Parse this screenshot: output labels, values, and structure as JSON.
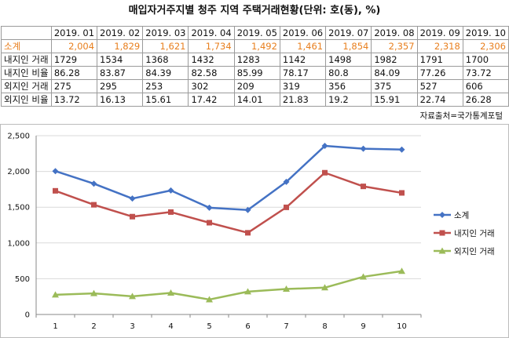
{
  "title": "매입자거주지별 청주 지역 주택거래현황(단위: 호(동), %)",
  "source": "자료출처=국가통계포털",
  "table": {
    "columns": [
      "2019. 01",
      "2019. 02",
      "2019. 03",
      "2019. 04",
      "2019. 05",
      "2019. 06",
      "2019. 07",
      "2019. 08",
      "2019. 09",
      "2019. 10"
    ],
    "rows": [
      {
        "label": "소계",
        "values": [
          "2,004",
          "1,829",
          "1,621",
          "1,734",
          "1,492",
          "1,461",
          "1,854",
          "2,357",
          "2,318",
          "2,306"
        ]
      },
      {
        "label": "내지인 거래",
        "values": [
          "1729",
          "1534",
          "1368",
          "1432",
          "1283",
          "1142",
          "1498",
          "1982",
          "1791",
          "1700"
        ]
      },
      {
        "label": "내지인 비율",
        "values": [
          "86.28",
          "83.87",
          "84.39",
          "82.58",
          "85.99",
          "78.17",
          "80.8",
          "84.09",
          "77.26",
          "73.72"
        ]
      },
      {
        "label": "외지인 거래",
        "values": [
          "275",
          "295",
          "253",
          "302",
          "209",
          "319",
          "356",
          "375",
          "527",
          "606"
        ]
      },
      {
        "label": "외지인 비율",
        "values": [
          "13.72",
          "16.13",
          "15.61",
          "17.42",
          "14.01",
          "21.83",
          "19.2",
          "15.91",
          "22.74",
          "26.28"
        ]
      }
    ]
  },
  "colors": {
    "total": "#4472c4",
    "local": "#c0504d",
    "outside": "#9bbb59",
    "total_text": "#e87f1e"
  },
  "chart_data": {
    "type": "line",
    "x": [
      1,
      2,
      3,
      4,
      5,
      6,
      7,
      8,
      9,
      10
    ],
    "series": [
      {
        "name": "소계",
        "values": [
          2004,
          1829,
          1621,
          1734,
          1492,
          1461,
          1854,
          2357,
          2318,
          2306
        ],
        "color": "#4472c4",
        "marker": "diamond"
      },
      {
        "name": "내지인 거래",
        "values": [
          1729,
          1534,
          1368,
          1432,
          1283,
          1142,
          1498,
          1982,
          1791,
          1700
        ],
        "color": "#c0504d",
        "marker": "square"
      },
      {
        "name": "외지인 거래",
        "values": [
          275,
          295,
          253,
          302,
          209,
          319,
          356,
          375,
          527,
          606
        ],
        "color": "#9bbb59",
        "marker": "triangle"
      }
    ],
    "ylim": [
      0,
      2500
    ],
    "yticks": [
      0,
      500,
      1000,
      1500,
      2000,
      2500
    ],
    "ytick_labels": [
      "0",
      "500",
      "1,000",
      "1,500",
      "2,000",
      "2,500"
    ],
    "xtick_labels": [
      "1",
      "2",
      "3",
      "4",
      "5",
      "6",
      "7",
      "8",
      "9",
      "10"
    ],
    "grid": true,
    "legend": "right"
  }
}
